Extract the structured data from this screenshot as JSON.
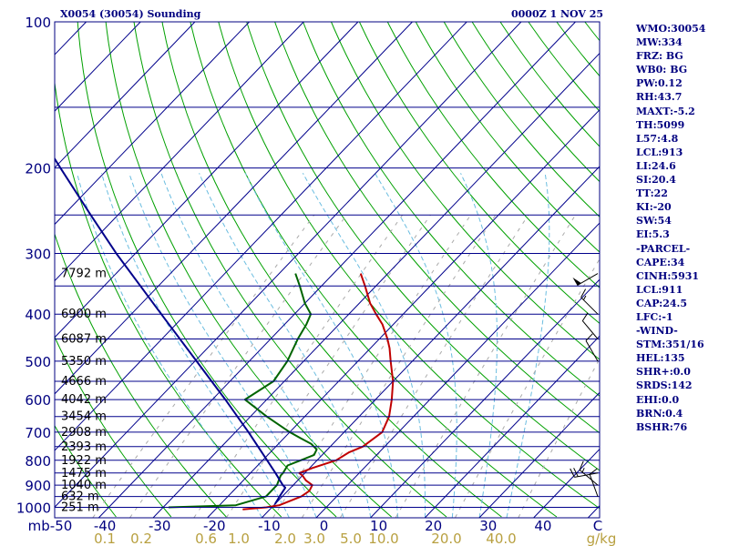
{
  "header": {
    "title": "X0054 (30054) Sounding",
    "datetime": "0000Z  1 NOV 25"
  },
  "indices": [
    "WMO:30054",
    "MW:334",
    "FRZ: BG",
    "WB0: BG",
    "PW:0.12",
    "RH:43.7",
    "MAXT:-5.2",
    "TH:5099",
    "L57:4.8",
    "LCL:913",
    "LI:24.6",
    "SI:20.4",
    "TT:22",
    "KI:-20",
    "SW:54",
    "EI:5.3",
    "-PARCEL-",
    "CAPE:34",
    "CINH:5931",
    "LCL:911",
    "CAP:24.5",
    "LFC:-1",
    "-WIND-",
    "STM:351/16",
    "HEL:135",
    "SHR+:0.0",
    "SRDS:142",
    "EHI:0.0",
    "BRN:0.4",
    "BSHR:76"
  ],
  "chart_data": {
    "type": "line",
    "subtype": "skew-T log-P sounding",
    "pressure_axis": {
      "unit": "mb",
      "log_scale": true,
      "range": [
        100,
        1000
      ],
      "ticks": [
        100,
        200,
        300,
        400,
        500,
        600,
        700,
        800,
        900,
        1000
      ]
    },
    "temperature_axis": {
      "unit": "°C",
      "ticks": [
        "mb-50",
        "-40",
        "-30",
        "-20",
        "-10",
        "0",
        "10",
        "20",
        "30",
        "40",
        "C"
      ]
    },
    "mixing_ratio_labels": {
      "unit": "g/kg",
      "values": [
        "0.1",
        "0.2",
        "0.6",
        "1.0",
        "2.0",
        "3.0",
        "5.0",
        "10.0",
        "20.0",
        "40.0"
      ],
      "unit_label": "g/kg"
    },
    "height_labels": [
      {
        "p": 330,
        "label": "7792 m"
      },
      {
        "p": 400,
        "label": "6900 m"
      },
      {
        "p": 450,
        "label": "6087 m"
      },
      {
        "p": 500,
        "label": "5350 m"
      },
      {
        "p": 550,
        "label": "4666 m"
      },
      {
        "p": 600,
        "label": "4042 m"
      },
      {
        "p": 650,
        "label": "3454 m"
      },
      {
        "p": 700,
        "label": "2908 m"
      },
      {
        "p": 750,
        "label": "2393 m"
      },
      {
        "p": 800,
        "label": "1922 m"
      },
      {
        "p": 850,
        "label": "1475 m"
      },
      {
        "p": 900,
        "label": "1040 m"
      },
      {
        "p": 950,
        "label": "632 m"
      },
      {
        "p": 1000,
        "label": "251 m"
      }
    ],
    "series": [
      {
        "name": "",
        "role": "temperature",
        "color": "#c00000",
        "points": [
          [
            1010,
            -15
          ],
          [
            1000,
            -11
          ],
          [
            990,
            -9
          ],
          [
            950,
            -6.5
          ],
          [
            925,
            -6
          ],
          [
            900,
            -6.5
          ],
          [
            880,
            -8.5
          ],
          [
            860,
            -10
          ],
          [
            850,
            -11
          ],
          [
            830,
            -9.5
          ],
          [
            800,
            -6.5
          ],
          [
            770,
            -5.5
          ],
          [
            750,
            -4
          ],
          [
            700,
            -3
          ],
          [
            650,
            -4.5
          ],
          [
            600,
            -7
          ],
          [
            550,
            -10
          ],
          [
            500,
            -14
          ],
          [
            470,
            -16.5
          ],
          [
            450,
            -18.5
          ],
          [
            420,
            -22
          ],
          [
            400,
            -25
          ],
          [
            380,
            -28
          ],
          [
            350,
            -32
          ],
          [
            330,
            -35
          ]
        ]
      },
      {
        "name": "",
        "role": "dewpoint",
        "color": "#006400",
        "points": [
          [
            1000,
            -29
          ],
          [
            990,
            -17
          ],
          [
            950,
            -13
          ],
          [
            925,
            -13
          ],
          [
            900,
            -13
          ],
          [
            880,
            -13.5
          ],
          [
            860,
            -14
          ],
          [
            850,
            -14
          ],
          [
            820,
            -14.5
          ],
          [
            800,
            -13
          ],
          [
            780,
            -11.5
          ],
          [
            760,
            -12
          ],
          [
            740,
            -14
          ],
          [
            720,
            -17
          ],
          [
            700,
            -20
          ],
          [
            650,
            -27
          ],
          [
            600,
            -34
          ],
          [
            550,
            -32
          ],
          [
            500,
            -33
          ],
          [
            450,
            -35
          ],
          [
            420,
            -36
          ],
          [
            400,
            -37
          ],
          [
            380,
            -40
          ],
          [
            350,
            -44
          ],
          [
            330,
            -47
          ]
        ]
      },
      {
        "name": "",
        "role": "parcel",
        "color": "#00008b",
        "points": [
          [
            985,
            -10
          ],
          [
            950,
            -10.5
          ],
          [
            911,
            -11
          ],
          [
            900,
            -11.9
          ],
          [
            850,
            -15.4
          ],
          [
            800,
            -19.2
          ],
          [
            700,
            -27.6
          ],
          [
            600,
            -37.6
          ],
          [
            500,
            -49.7
          ],
          [
            400,
            -64.5
          ],
          [
            300,
            -83.5
          ],
          [
            250,
            -95
          ],
          [
            200,
            -108.9
          ],
          [
            150,
            -126.6
          ],
          [
            103,
            -148.8
          ]
        ]
      }
    ],
    "wind_barbs": [
      {
        "p": 330,
        "dir": 240,
        "speed": 50
      },
      {
        "p": 400,
        "dir": 315,
        "speed": 15
      },
      {
        "p": 450,
        "dir": 320,
        "speed": 10
      },
      {
        "p": 500,
        "dir": 330,
        "speed": 10
      },
      {
        "p": 850,
        "dir": 260,
        "speed": 20
      },
      {
        "p": 900,
        "dir": 310,
        "speed": 15
      },
      {
        "p": 950,
        "dir": 340,
        "speed": 10
      }
    ],
    "colors": {
      "isobar": "#00008b",
      "isotherm": "#00008b",
      "dry_adiabat": "#00a000",
      "moist_adiabat": "#6bbde0",
      "mixing_ratio": "#aaaaaa",
      "label": "#000080",
      "mixing_label": "#b8a040",
      "wind_barb": "#000000"
    }
  }
}
